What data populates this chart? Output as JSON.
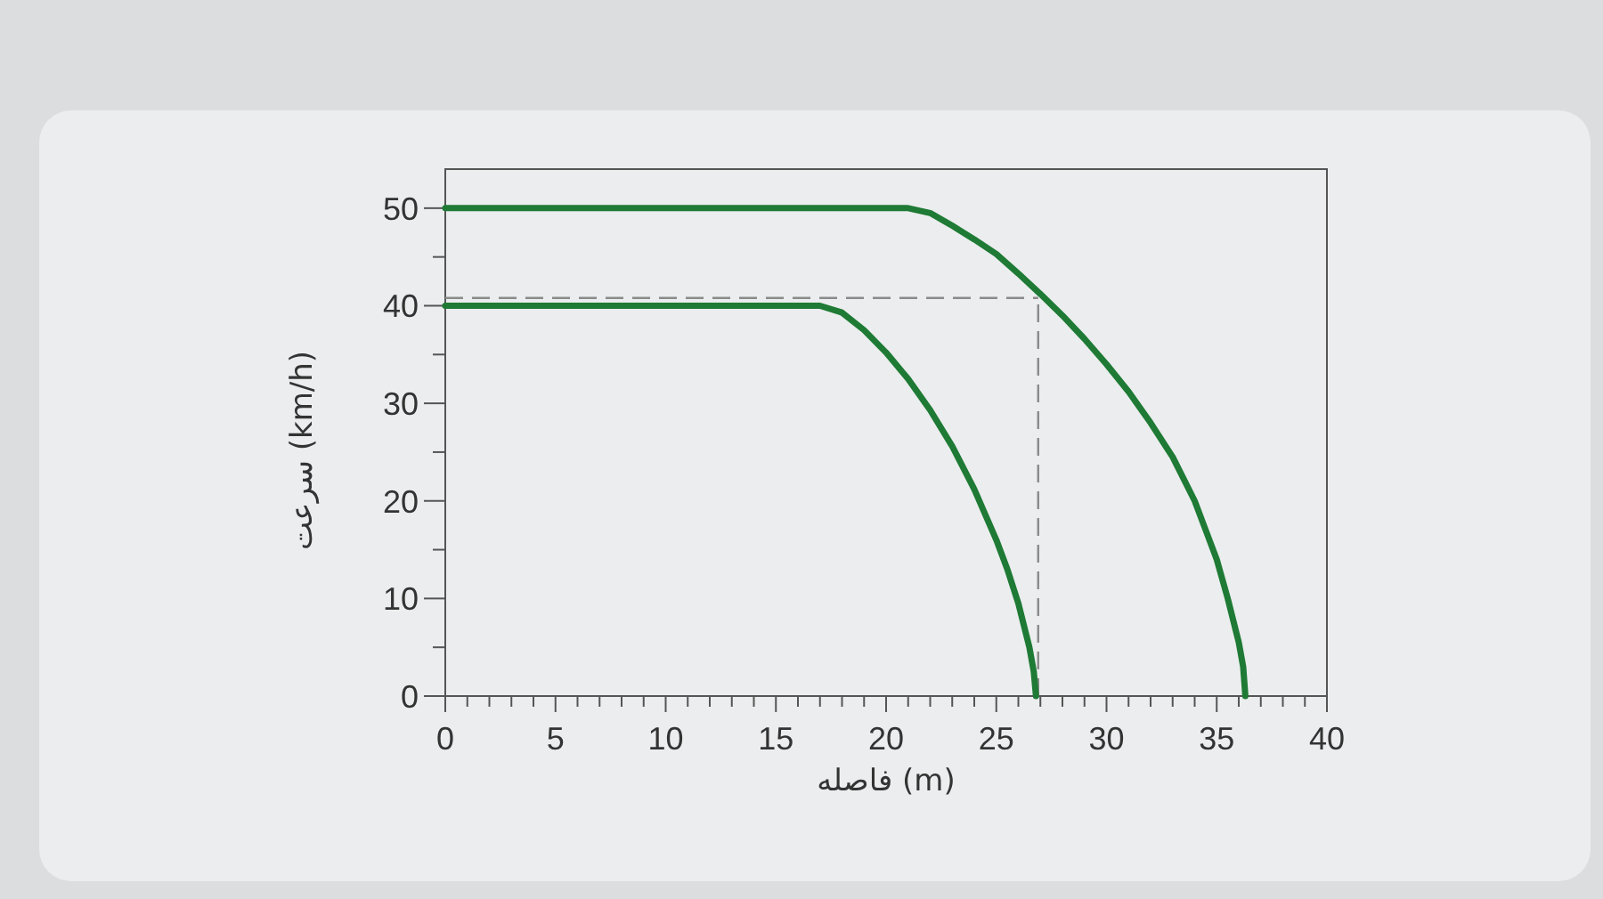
{
  "chart_data": {
    "type": "line",
    "xlabel": "فاصله  (m)",
    "ylabel": "سرعت  (km/h)",
    "series": [
      {
        "color": "#1e7a34",
        "x": [
          0,
          5,
          10,
          15,
          20,
          21,
          22,
          23,
          24,
          25,
          26,
          27,
          28,
          29,
          30,
          31,
          32,
          33,
          34,
          34.5,
          35,
          35.5,
          36,
          36.2,
          36.3
        ],
        "values": [
          50,
          50,
          50,
          50,
          50,
          50,
          49.5,
          48.2,
          46.8,
          45.3,
          43.3,
          41.2,
          39,
          36.6,
          34,
          31.2,
          28,
          24.5,
          20,
          17,
          14,
          10,
          5.5,
          3,
          0
        ]
      },
      {
        "color": "#1e7a34",
        "x": [
          0,
          5,
          10,
          15,
          17,
          18,
          19,
          20,
          21,
          22,
          23,
          24,
          25,
          25.5,
          26,
          26.5,
          26.7,
          26.8
        ],
        "values": [
          40,
          40,
          40,
          40,
          40,
          39.3,
          37.5,
          35.2,
          32.5,
          29.3,
          25.6,
          21.2,
          16,
          13,
          9.5,
          5,
          2.5,
          0
        ]
      }
    ],
    "ref_lines": [
      {
        "axis": "y",
        "value": 40.8,
        "color": "#8a8a8a",
        "line_style": "dashed"
      },
      {
        "axis": "x",
        "value": 26.9,
        "color": "#8a8a8a",
        "line_style": "dashed"
      }
    ],
    "xlim": [
      0,
      40
    ],
    "ylim": [
      0,
      54
    ],
    "xticks": [
      0,
      {
        "value": 1,
        "label": null
      },
      {
        "value": 2,
        "label": null
      },
      {
        "value": 3,
        "label": null
      },
      {
        "value": 4,
        "label": null
      },
      5,
      {
        "value": 6,
        "label": null
      },
      {
        "value": 7,
        "label": null
      },
      {
        "value": 8,
        "label": null
      },
      {
        "value": 9,
        "label": null
      },
      10,
      {
        "value": 11,
        "label": null
      },
      {
        "value": 12,
        "label": null
      },
      {
        "value": 13,
        "label": null
      },
      {
        "value": 14,
        "label": null
      },
      15,
      {
        "value": 16,
        "label": null
      },
      {
        "value": 17,
        "label": null
      },
      {
        "value": 18,
        "label": null
      },
      {
        "value": 19,
        "label": null
      },
      20,
      {
        "value": 21,
        "label": null
      },
      {
        "value": 22,
        "label": null
      },
      {
        "value": 23,
        "label": null
      },
      {
        "value": 24,
        "label": null
      },
      25,
      {
        "value": 26,
        "label": null
      },
      {
        "value": 27,
        "label": null
      },
      {
        "value": 28,
        "label": null
      },
      {
        "value": 29,
        "label": null
      },
      30,
      {
        "value": 31,
        "label": null
      },
      {
        "value": 32,
        "label": null
      },
      {
        "value": 33,
        "label": null
      },
      {
        "value": 34,
        "label": null
      },
      35,
      {
        "value": 36,
        "label": null
      },
      {
        "value": 37,
        "label": null
      },
      {
        "value": 38,
        "label": null
      },
      {
        "value": 39,
        "label": null
      },
      40
    ],
    "yticks": [
      0,
      {
        "value": 5,
        "label": null
      },
      10,
      {
        "value": 15,
        "label": null
      },
      20,
      {
        "value": 25,
        "label": null
      },
      30,
      {
        "value": 35,
        "label": null
      },
      40,
      {
        "value": 45,
        "label": null
      },
      50
    ],
    "grid": false,
    "marker": "none",
    "line_style": "solid"
  }
}
